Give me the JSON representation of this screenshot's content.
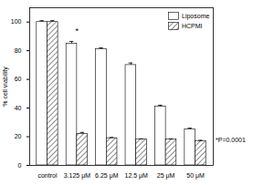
{
  "chart_data": {
    "type": "bar",
    "categories": [
      "control",
      "3.125 μM",
      "6.25 μM",
      "12.5 μM",
      "25 μM",
      "50 μM"
    ],
    "series": [
      {
        "name": "Liposome",
        "color": "#ffffff",
        "values": [
          100,
          85,
          81,
          70,
          41,
          25
        ],
        "errors": [
          1,
          1.5,
          1,
          1.5,
          1,
          1
        ]
      },
      {
        "name": "HCPMI",
        "color": "#8c8c8c",
        "values": [
          100,
          22,
          19,
          18,
          18,
          17
        ],
        "errors": [
          1,
          1,
          0.5,
          0.5,
          0.5,
          0.5
        ]
      }
    ],
    "y_label": "% cell viability",
    "ylim": [
      0,
      110
    ],
    "yticks": [
      0,
      20,
      40,
      60,
      80,
      100
    ],
    "annotations": [
      {
        "text": "*",
        "category": "3.125 μM",
        "y": 92
      }
    ],
    "note": "*P=0.0001",
    "legend": "top-right",
    "grid": false
  }
}
